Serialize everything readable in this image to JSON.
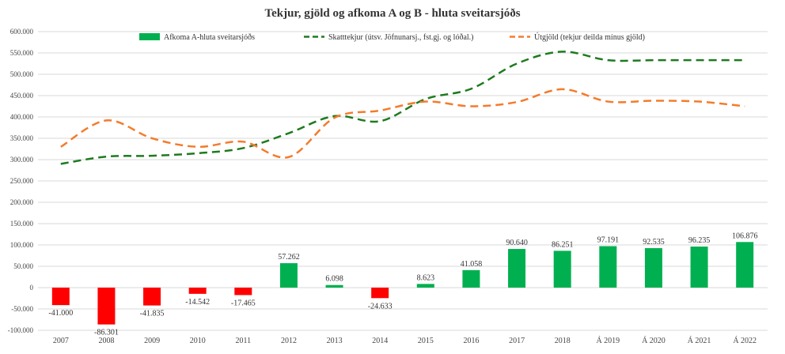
{
  "chart_data": {
    "type": "bar+line",
    "title": "Tekjur, gjöld og afkoma A og B - hluta sveitarsjóðs",
    "categories": [
      "2007",
      "2008",
      "2009",
      "2010",
      "2011",
      "2012",
      "2013",
      "2014",
      "2015",
      "2016",
      "2017",
      "2018",
      "Á 2019",
      "Á 2020",
      "Á 2021",
      "Á 2022"
    ],
    "ylim": [
      -100000,
      600000
    ],
    "ytick_step": 50000,
    "ytick_labels": [
      "-100.000",
      "-50.000",
      "0",
      "50.000",
      "100.000",
      "150.000",
      "200.000",
      "250.000",
      "300.000",
      "350.000",
      "400.000",
      "450.000",
      "500.000",
      "550.000",
      "600.000"
    ],
    "grid": true,
    "legend_position": "top",
    "series": [
      {
        "name": "Afkoma A-hluta sveitarsjóðs",
        "kind": "bar",
        "values": [
          -41000,
          -86301,
          -41835,
          -14542,
          -17465,
          57262,
          6098,
          -24633,
          8623,
          41058,
          90640,
          86251,
          97191,
          92535,
          96235,
          106876
        ],
        "labels": [
          "-41.000",
          "-86.301",
          "-41.835",
          "-14.542",
          "-17.465",
          "57.262",
          "6.098",
          "-24.633",
          "8.623",
          "41.058",
          "90.640",
          "86.251",
          "97.191",
          "92.535",
          "96.235",
          "106.876"
        ],
        "positive_color": "#00b050",
        "negative_color": "#ff0000"
      },
      {
        "name": "Skatttekjur (útsv. Jöfnunarsj., fst.gj. og lóðal.)",
        "kind": "line",
        "style": "dashed",
        "color": "#1e7b1e",
        "values": [
          290000,
          307000,
          309000,
          315000,
          327000,
          362000,
          402000,
          390000,
          442000,
          466000,
          525000,
          553000,
          533000,
          533000,
          533000,
          533000
        ]
      },
      {
        "name": "Útgjöld (tekjur deilda mínus gjöld)",
        "kind": "line",
        "style": "dashed",
        "color": "#f47b2b",
        "values": [
          330000,
          392000,
          350000,
          330000,
          342000,
          306000,
          398000,
          415000,
          436000,
          425000,
          435000,
          465000,
          436000,
          438000,
          436000,
          425000
        ]
      }
    ]
  }
}
